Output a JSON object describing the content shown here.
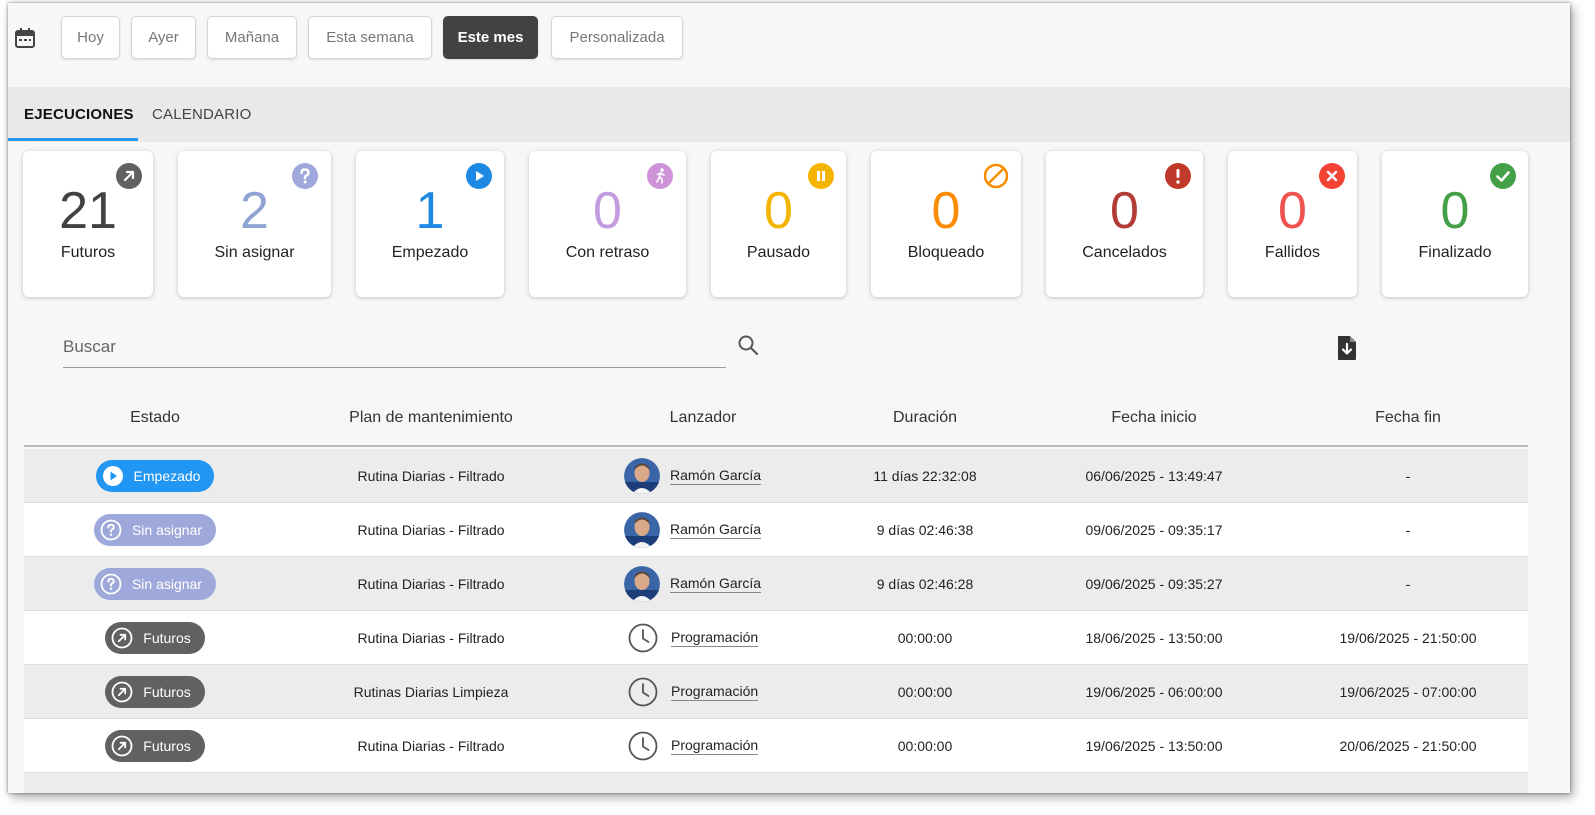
{
  "filters": {
    "buttons": [
      "Hoy",
      "Ayer",
      "Mañana",
      "Esta semana",
      "Este mes",
      "Personalizada"
    ],
    "active": "Este mes"
  },
  "tabs": [
    "EJECUCIONES",
    "CALENDARIO"
  ],
  "active_tab": "EJECUCIONES",
  "cards": [
    {
      "count": "21",
      "label": "Futuros",
      "color": "#424242",
      "icon": "arrow-up-right-icon",
      "icon_color": "#616161"
    },
    {
      "count": "2",
      "label": "Sin asignar",
      "color": "#90a4d4",
      "icon": "question-icon",
      "icon_color": "#9fa8da"
    },
    {
      "count": "1",
      "label": "Empezado",
      "color": "#1e88e5",
      "icon": "play-icon",
      "icon_color": "#1e88e5"
    },
    {
      "count": "0",
      "label": "Con retraso",
      "color": "#c39be0",
      "icon": "running-person-icon",
      "icon_color": "#ce93d8"
    },
    {
      "count": "0",
      "label": "Pausado",
      "color": "#f5b400",
      "icon": "pause-icon",
      "icon_color": "#f5b400"
    },
    {
      "count": "0",
      "label": "Bloqueado",
      "color": "#fb8c00",
      "icon": "blocked-icon",
      "icon_color": "#fb8c00"
    },
    {
      "count": "0",
      "label": "Cancelados",
      "color": "#b23b36",
      "icon": "exclamation-icon",
      "icon_color": "#c0392b"
    },
    {
      "count": "0",
      "label": "Fallidos",
      "color": "#ef5350",
      "icon": "x-icon",
      "icon_color": "#f44336"
    },
    {
      "count": "0",
      "label": "Finalizado",
      "color": "#43a047",
      "icon": "check-icon",
      "icon_color": "#43a047"
    }
  ],
  "search": {
    "placeholder": "Buscar"
  },
  "table": {
    "headers": [
      "Estado",
      "Plan de mantenimiento",
      "Lanzador",
      "Duración",
      "Fecha inicio",
      "Fecha fin"
    ],
    "rows": [
      {
        "status": "Empezado",
        "status_type": "started",
        "plan": "Rutina Diarias - Filtrado",
        "launcher": "Ramón García",
        "launcher_type": "user",
        "duration": "11 días 22:32:08",
        "start": "06/06/2025 - 13:49:47",
        "end": "-"
      },
      {
        "status": "Sin asignar",
        "status_type": "unassigned",
        "plan": "Rutina Diarias - Filtrado",
        "launcher": "Ramón García",
        "launcher_type": "user",
        "duration": "9 días 02:46:38",
        "start": "09/06/2025 - 09:35:17",
        "end": "-"
      },
      {
        "status": "Sin asignar",
        "status_type": "unassigned",
        "plan": "Rutina Diarias - Filtrado",
        "launcher": "Ramón García",
        "launcher_type": "user",
        "duration": "9 días 02:46:28",
        "start": "09/06/2025 - 09:35:27",
        "end": "-"
      },
      {
        "status": "Futuros",
        "status_type": "future",
        "plan": "Rutina Diarias - Filtrado",
        "launcher": "Programación",
        "launcher_type": "schedule",
        "duration": "00:00:00",
        "start": "18/06/2025 - 13:50:00",
        "end": "19/06/2025 - 21:50:00"
      },
      {
        "status": "Futuros",
        "status_type": "future",
        "plan": "Rutinas Diarias Limpieza",
        "launcher": "Programación",
        "launcher_type": "schedule",
        "duration": "00:00:00",
        "start": "19/06/2025 - 06:00:00",
        "end": "19/06/2025 - 07:00:00"
      },
      {
        "status": "Futuros",
        "status_type": "future",
        "plan": "Rutina Diarias - Filtrado",
        "launcher": "Programación",
        "launcher_type": "schedule",
        "duration": "00:00:00",
        "start": "19/06/2025 - 13:50:00",
        "end": "20/06/2025 - 21:50:00"
      }
    ]
  },
  "status_colors": {
    "started": "#2196f3",
    "unassigned": "#9fa8da",
    "future": "#616161"
  }
}
